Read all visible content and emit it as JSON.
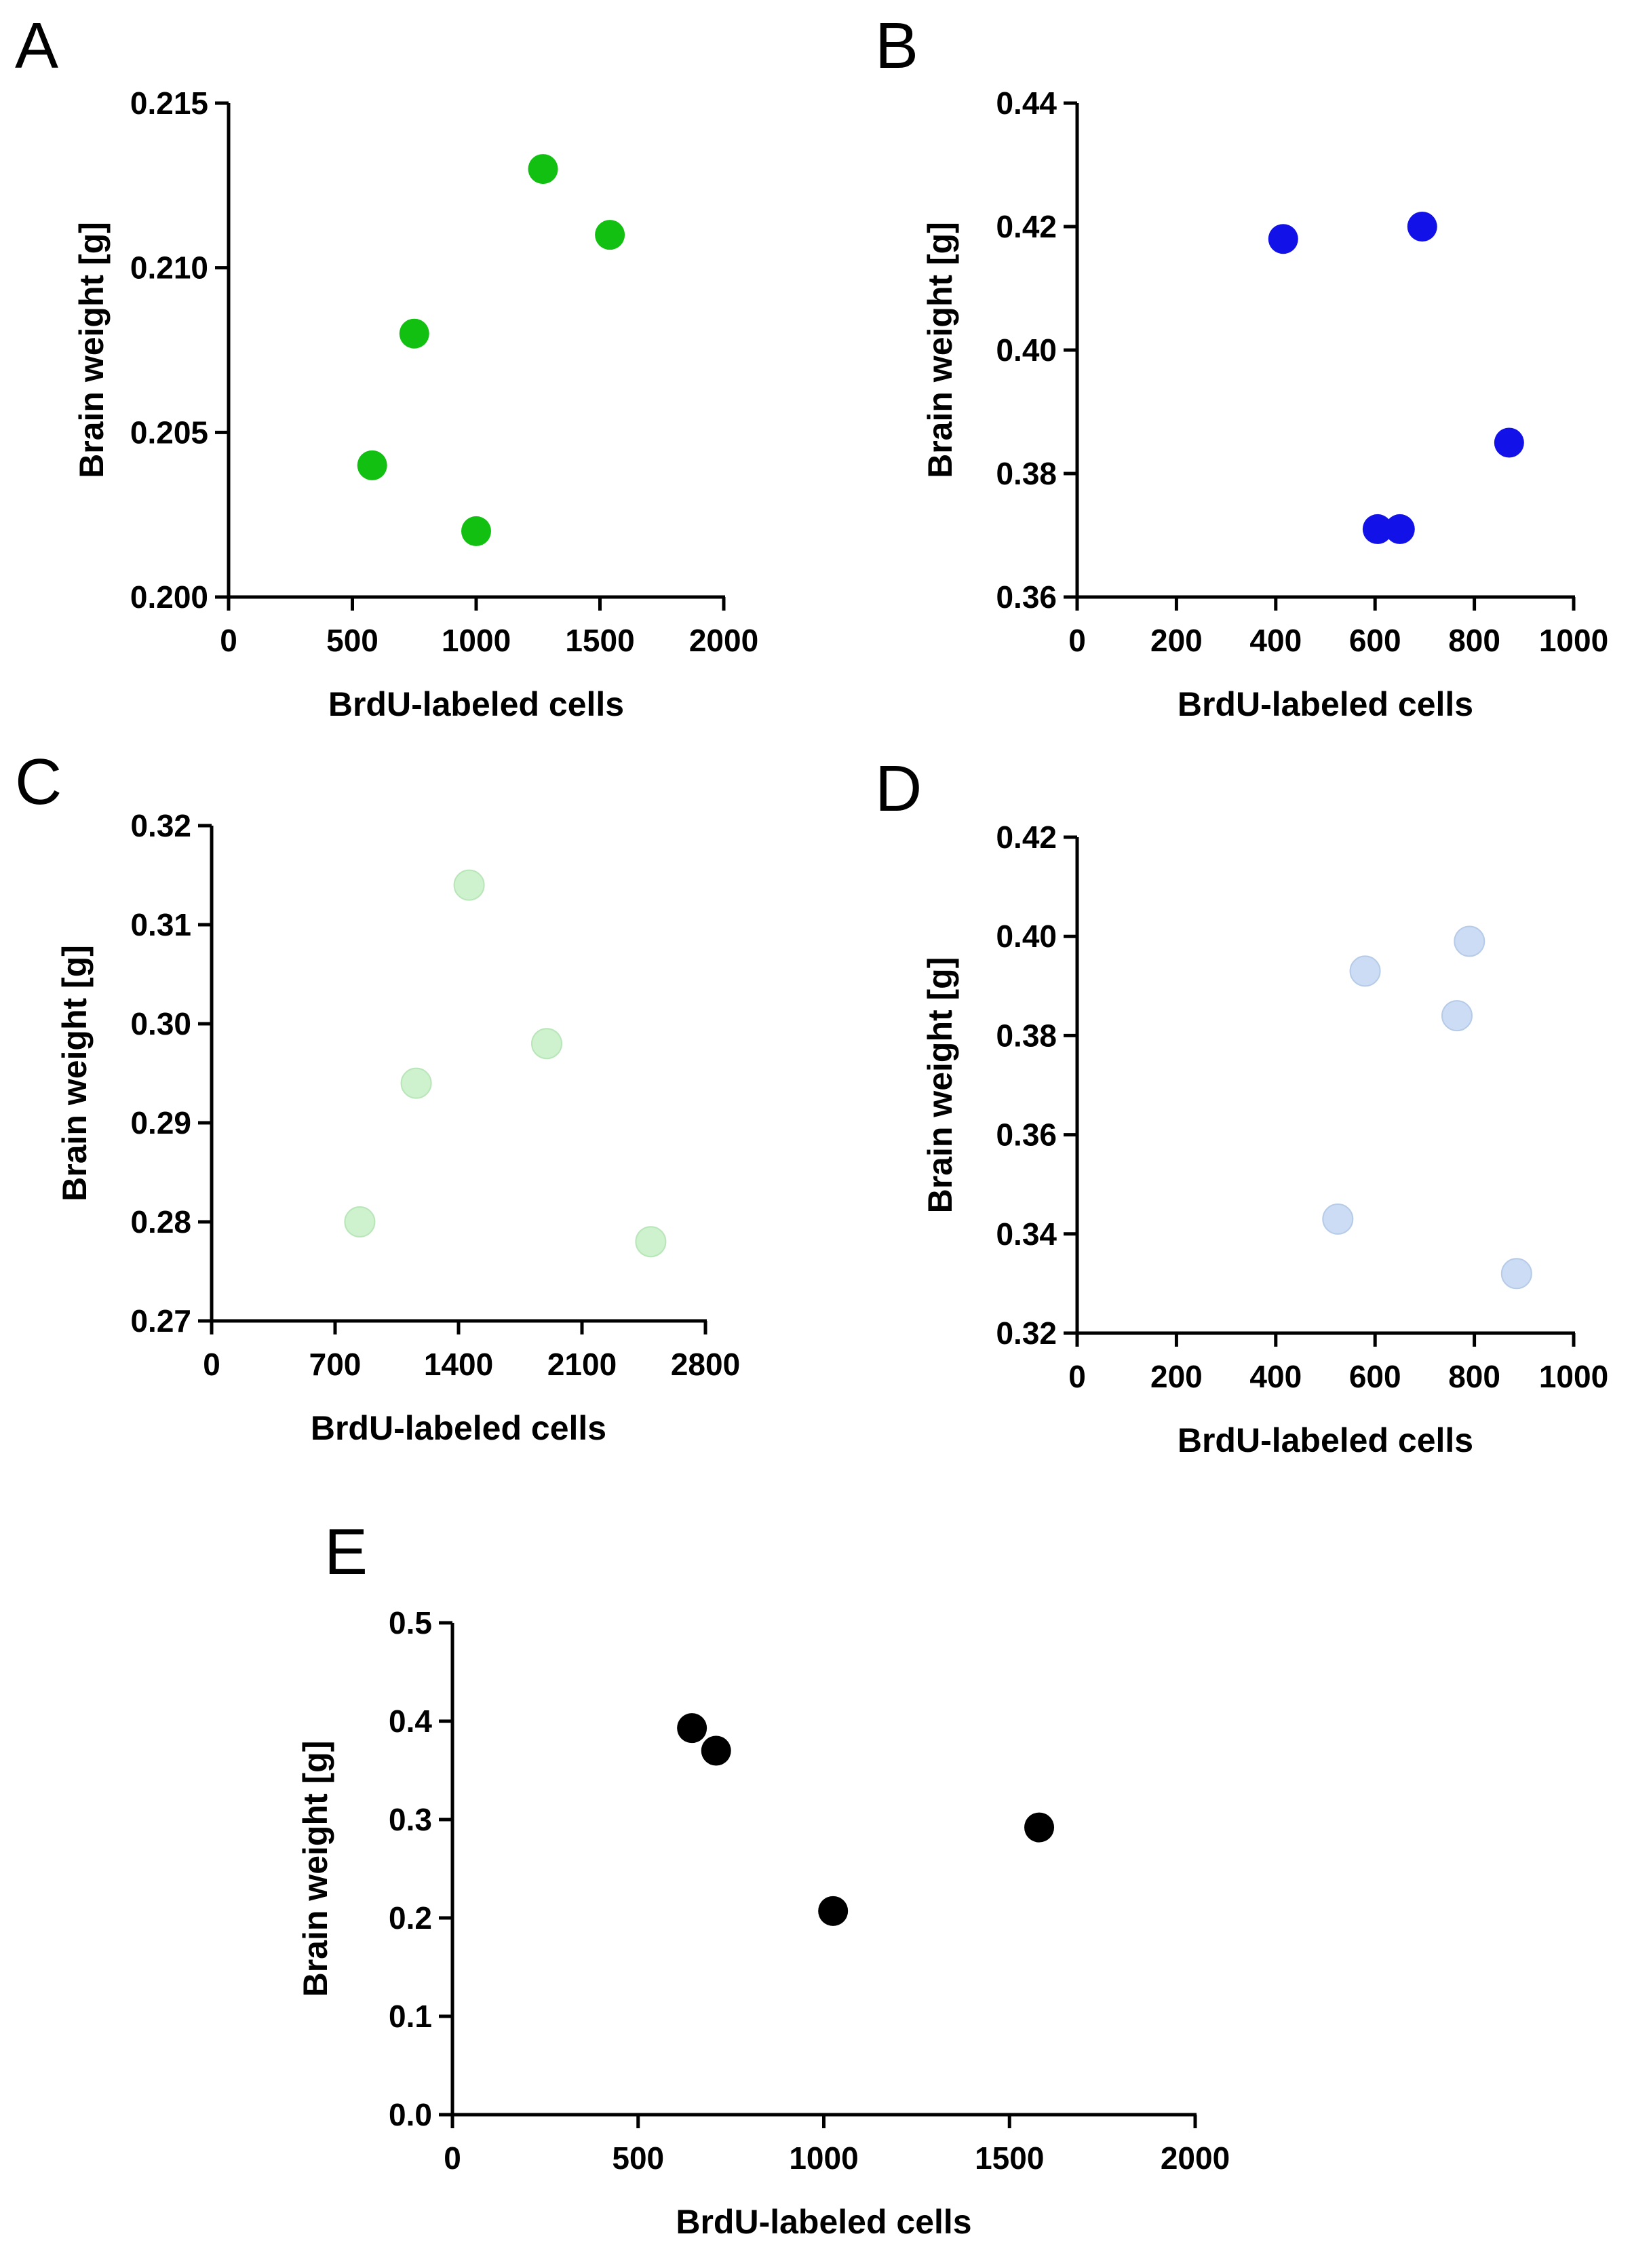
{
  "chart_data": [
    {
      "type": "scatter",
      "panel": "A",
      "xlabel": "BrdU-labeled cells",
      "ylabel": "Brain weight [g]",
      "xlim": [
        0,
        2000
      ],
      "ylim": [
        0.2,
        0.215
      ],
      "xticks": [
        "0",
        "500",
        "1000",
        "1500",
        "2000"
      ],
      "yticks": [
        "0.200",
        "0.205",
        "0.210",
        "0.215"
      ],
      "color": "#11c011",
      "x": [
        1270,
        1540,
        750,
        580,
        1000
      ],
      "y": [
        0.213,
        0.211,
        0.208,
        0.204,
        0.202
      ]
    },
    {
      "type": "scatter",
      "panel": "B",
      "xlabel": "BrdU-labeled cells",
      "ylabel": "Brain weight [g]",
      "xlim": [
        0,
        1000
      ],
      "ylim": [
        0.36,
        0.44
      ],
      "xticks": [
        "0",
        "200",
        "400",
        "600",
        "800",
        "1000"
      ],
      "yticks": [
        "0.36",
        "0.38",
        "0.40",
        "0.42",
        "0.44"
      ],
      "color": "#1212e8",
      "x": [
        415,
        695,
        870,
        605,
        650
      ],
      "y": [
        0.418,
        0.42,
        0.385,
        0.371,
        0.371
      ]
    },
    {
      "type": "scatter",
      "panel": "C",
      "xlabel": "BrdU-labeled cells",
      "ylabel": "Brain weight [g]",
      "xlim": [
        0,
        2800
      ],
      "ylim": [
        0.27,
        0.32
      ],
      "xticks": [
        "0",
        "700",
        "1400",
        "2100",
        "2800"
      ],
      "yticks": [
        "0.27",
        "0.28",
        "0.29",
        "0.30",
        "0.31",
        "0.32"
      ],
      "color": "#cdf2cd",
      "x": [
        1460,
        1900,
        1160,
        840,
        2490
      ],
      "y": [
        0.314,
        0.298,
        0.294,
        0.28,
        0.278
      ]
    },
    {
      "type": "scatter",
      "panel": "D",
      "xlabel": "BrdU-labeled cells",
      "ylabel": "Brain weight [g]",
      "xlim": [
        0,
        1000
      ],
      "ylim": [
        0.32,
        0.42
      ],
      "xticks": [
        "0",
        "200",
        "400",
        "600",
        "800",
        "1000"
      ],
      "yticks": [
        "0.32",
        "0.34",
        "0.36",
        "0.38",
        "0.40",
        "0.42"
      ],
      "color": "#cbdcf4",
      "x": [
        790,
        580,
        765,
        525,
        885
      ],
      "y": [
        0.399,
        0.393,
        0.384,
        0.343,
        0.332
      ]
    },
    {
      "type": "scatter",
      "panel": "E",
      "xlabel": "BrdU-labeled cells",
      "ylabel": "Brain weight [g]",
      "xlim": [
        0,
        2000
      ],
      "ylim": [
        0.0,
        0.5
      ],
      "xticks": [
        "0",
        "500",
        "1000",
        "1500",
        "2000"
      ],
      "yticks": [
        "0.0",
        "0.1",
        "0.2",
        "0.3",
        "0.4",
        "0.5"
      ],
      "color": "#000000",
      "x": [
        645,
        710,
        1025,
        1580
      ],
      "y": [
        0.393,
        0.37,
        0.207,
        0.292
      ]
    }
  ]
}
